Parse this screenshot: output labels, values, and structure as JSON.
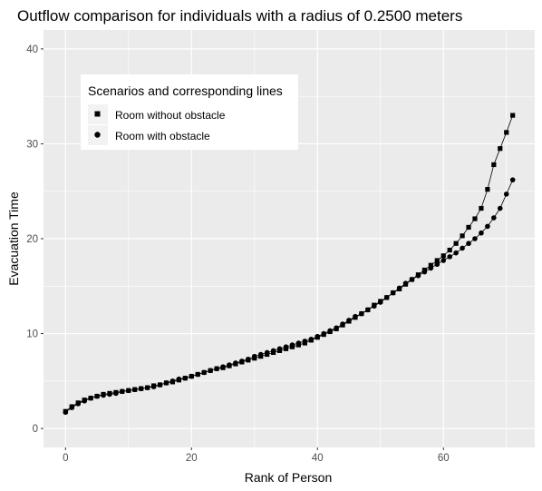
{
  "chart_data": {
    "type": "scatter",
    "title": "Outflow comparison for individuals with a radius of 0.2500 meters",
    "xlabel": "Rank of Person",
    "ylabel": "Evacuation Time",
    "xlim": [
      -3.5,
      74.5
    ],
    "ylim": [
      -2,
      42
    ],
    "xticks": [
      "0",
      "20",
      "40",
      "60"
    ],
    "xtick_values": [
      0,
      20,
      40,
      60
    ],
    "yticks": [
      "0",
      "10",
      "20",
      "30",
      "40"
    ],
    "ytick_values": [
      0,
      10,
      20,
      30,
      40
    ],
    "grid": true,
    "background": "#ebebeb",
    "grid_color": "#ffffff",
    "legend": {
      "title": "Scenarios and corresponding lines",
      "position": "top-left"
    },
    "series": [
      {
        "name": "Room without obstacle",
        "marker": "square",
        "color": "#000000",
        "x": [
          0,
          1,
          2,
          3,
          4,
          5,
          6,
          7,
          8,
          9,
          10,
          11,
          12,
          13,
          14,
          15,
          16,
          17,
          18,
          19,
          20,
          21,
          22,
          23,
          24,
          25,
          26,
          27,
          28,
          29,
          30,
          31,
          32,
          33,
          34,
          35,
          36,
          37,
          38,
          39,
          40,
          41,
          42,
          43,
          44,
          45,
          46,
          47,
          48,
          49,
          50,
          51,
          52,
          53,
          54,
          55,
          56,
          57,
          58,
          59,
          60,
          61,
          62,
          63,
          64,
          65,
          66,
          67,
          68,
          69,
          70,
          71
        ],
        "y": [
          1.8,
          2.3,
          2.7,
          3.0,
          3.2,
          3.4,
          3.6,
          3.7,
          3.8,
          3.9,
          4.0,
          4.1,
          4.2,
          4.3,
          4.5,
          4.6,
          4.8,
          4.9,
          5.1,
          5.3,
          5.5,
          5.7,
          5.9,
          6.1,
          6.3,
          6.4,
          6.6,
          6.8,
          7.0,
          7.2,
          7.4,
          7.6,
          7.8,
          8.0,
          8.2,
          8.4,
          8.6,
          8.8,
          9.0,
          9.3,
          9.6,
          9.9,
          10.2,
          10.5,
          10.9,
          11.3,
          11.7,
          12.1,
          12.5,
          13.0,
          13.4,
          13.8,
          14.3,
          14.7,
          15.2,
          15.7,
          16.2,
          16.7,
          17.2,
          17.7,
          18.2,
          18.8,
          19.5,
          20.3,
          21.2,
          22.1,
          23.2,
          25.2,
          27.8,
          29.5,
          31.2,
          33.0
        ]
      },
      {
        "name": "Room with obstacle",
        "marker": "circle",
        "color": "#000000",
        "x": [
          0,
          1,
          2,
          3,
          4,
          5,
          6,
          7,
          8,
          9,
          10,
          11,
          12,
          13,
          14,
          15,
          16,
          17,
          18,
          19,
          20,
          21,
          22,
          23,
          24,
          25,
          26,
          27,
          28,
          29,
          30,
          31,
          32,
          33,
          34,
          35,
          36,
          37,
          38,
          39,
          40,
          41,
          42,
          43,
          44,
          45,
          46,
          47,
          48,
          49,
          50,
          51,
          52,
          53,
          54,
          55,
          56,
          57,
          58,
          59,
          60,
          61,
          62,
          63,
          64,
          65,
          66,
          67,
          68,
          69,
          70,
          71
        ],
        "y": [
          1.7,
          2.2,
          2.6,
          2.9,
          3.2,
          3.4,
          3.5,
          3.6,
          3.7,
          3.9,
          4.0,
          4.1,
          4.2,
          4.3,
          4.4,
          4.6,
          4.8,
          5.0,
          5.2,
          5.3,
          5.5,
          5.7,
          5.9,
          6.1,
          6.3,
          6.5,
          6.7,
          6.9,
          7.1,
          7.3,
          7.6,
          7.8,
          8.0,
          8.2,
          8.4,
          8.6,
          8.8,
          9.0,
          9.2,
          9.4,
          9.7,
          10.0,
          10.3,
          10.6,
          11.0,
          11.4,
          11.8,
          12.1,
          12.5,
          12.9,
          13.3,
          13.8,
          14.3,
          14.8,
          15.3,
          15.7,
          16.1,
          16.5,
          16.9,
          17.3,
          17.7,
          18.1,
          18.5,
          19.0,
          19.5,
          20.0,
          20.6,
          21.3,
          22.2,
          23.2,
          24.7,
          26.2
        ]
      }
    ]
  }
}
